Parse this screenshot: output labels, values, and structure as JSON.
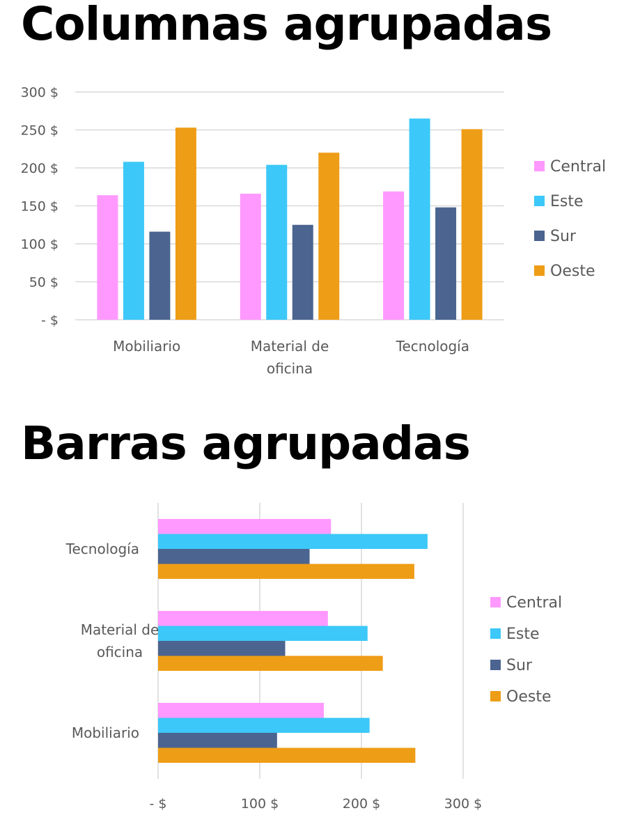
{
  "chart_data": [
    {
      "type": "bar",
      "orientation": "vertical",
      "title": "Columnas agrupadas",
      "categories": [
        "Mobiliario",
        "Material de oficina",
        "Tecnología"
      ],
      "category_lines": [
        [
          "Mobiliario"
        ],
        [
          "Material de",
          "oficina"
        ],
        [
          "Tecnología"
        ]
      ],
      "series": [
        {
          "name": "Central",
          "color": "#FF99FF",
          "values": [
            164,
            166,
            169
          ]
        },
        {
          "name": "Este",
          "color": "#3CC8F8",
          "values": [
            208,
            204,
            265
          ]
        },
        {
          "name": "Sur",
          "color": "#4B6490",
          "values": [
            116,
            125,
            148
          ]
        },
        {
          "name": "Oeste",
          "color": "#EE9D16",
          "values": [
            253,
            220,
            251
          ]
        }
      ],
      "ylim": [
        0,
        300
      ],
      "yticks": [
        0,
        50,
        100,
        150,
        200,
        250,
        300
      ],
      "ytick_labels": [
        "- $",
        "50 $",
        "100 $",
        "150 $",
        "200 $",
        "250 $",
        "300 $"
      ],
      "grid": true,
      "legend": "right"
    },
    {
      "type": "bar",
      "orientation": "horizontal",
      "title": "Barras agrupadas",
      "categories": [
        "Tecnología",
        "Material de oficina",
        "Mobiliario"
      ],
      "category_lines": [
        [
          "Tecnología"
        ],
        [
          "Material de",
          "oficina"
        ],
        [
          "Mobiliario"
        ]
      ],
      "series": [
        {
          "name": "Central",
          "color": "#FF99FF",
          "values": [
            170,
            167,
            163
          ]
        },
        {
          "name": "Este",
          "color": "#3CC8F8",
          "values": [
            265,
            206,
            208
          ]
        },
        {
          "name": "Sur",
          "color": "#4B6490",
          "values": [
            149,
            125,
            117
          ]
        },
        {
          "name": "Oeste",
          "color": "#EE9D16",
          "values": [
            252,
            221,
            253
          ]
        }
      ],
      "xlim": [
        0,
        300
      ],
      "xticks": [
        0,
        100,
        200,
        300
      ],
      "xtick_labels": [
        "- $",
        "100 $",
        "200 $",
        "300 $"
      ],
      "grid": true,
      "legend": "right"
    }
  ]
}
